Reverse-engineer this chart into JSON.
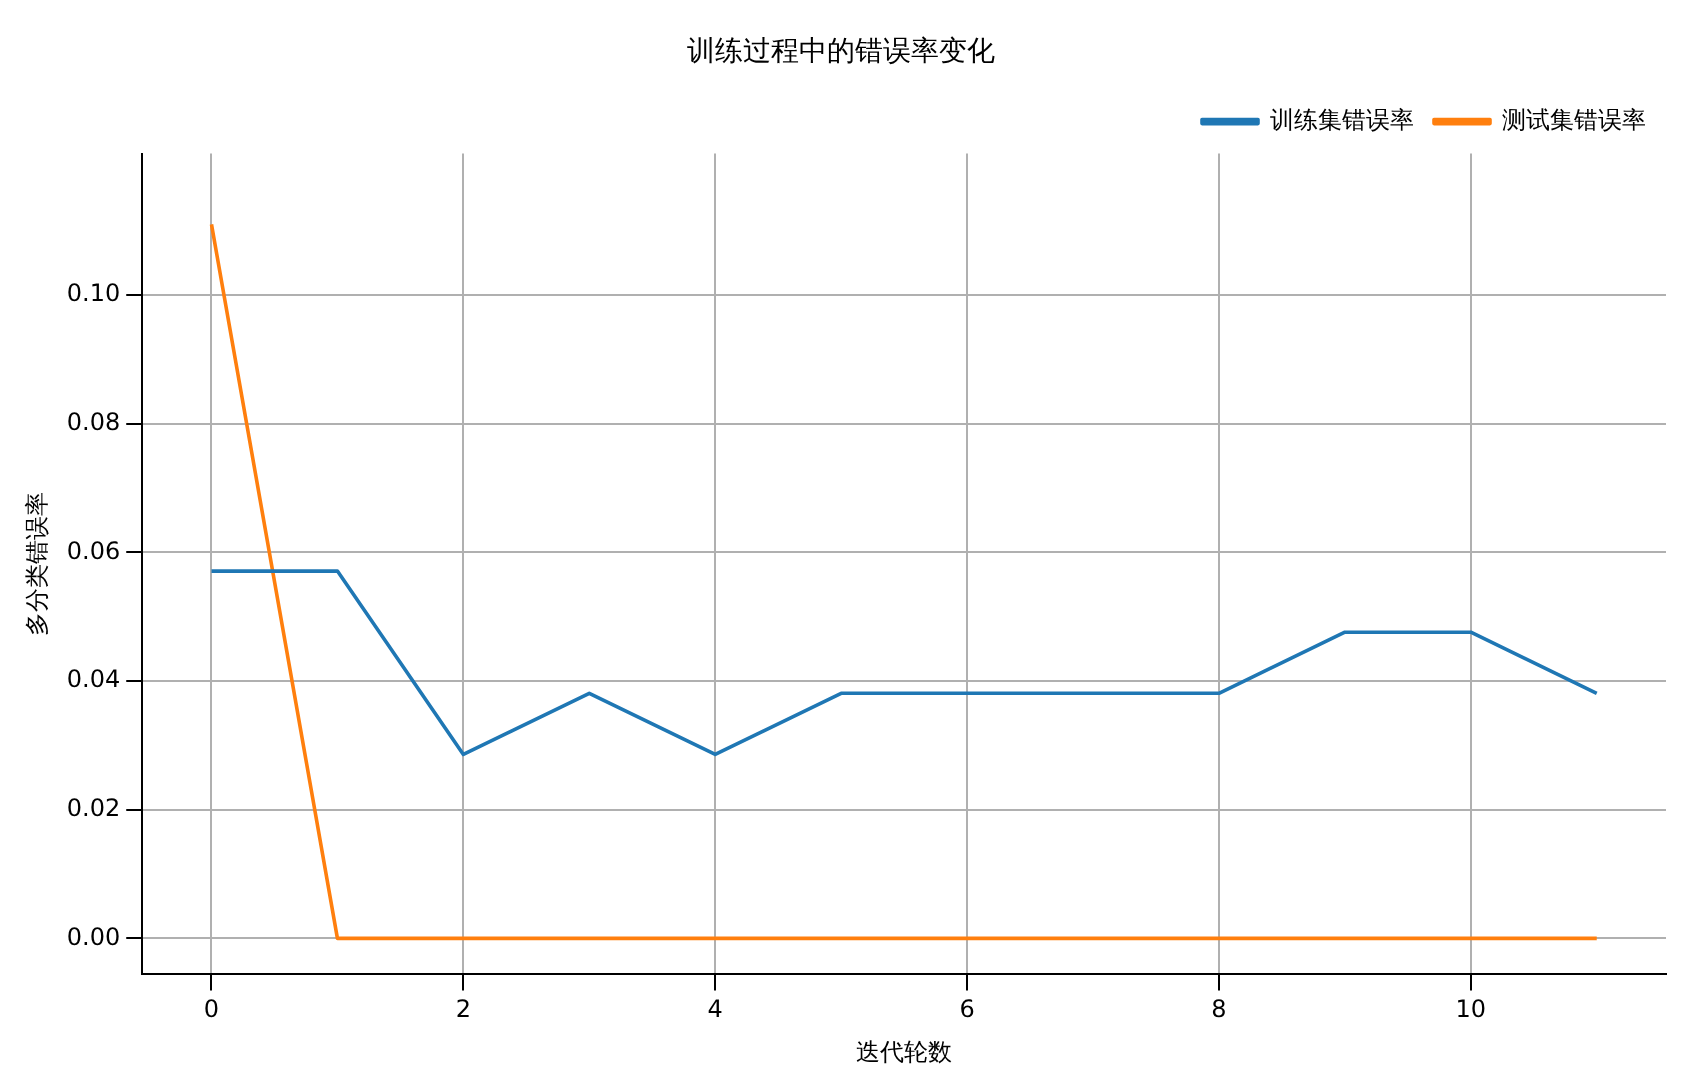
{
  "chart_data": {
    "type": "line",
    "title": "训练过程中的错误率变化",
    "xlabel": "迭代轮数",
    "ylabel": "多分类错误率",
    "x": [
      0,
      1,
      2,
      3,
      4,
      5,
      6,
      7,
      8,
      9,
      10,
      11
    ],
    "series": [
      {
        "name": "训练集错误率",
        "color": "#1f77b4",
        "values": [
          0.0571,
          0.0571,
          0.0286,
          0.0381,
          0.0286,
          0.0381,
          0.0381,
          0.0381,
          0.0381,
          0.0476,
          0.0476,
          0.0381
        ]
      },
      {
        "name": "测试集错误率",
        "color": "#ff7f0e",
        "values": [
          0.111,
          0,
          0,
          0,
          0,
          0,
          0,
          0,
          0,
          0,
          0,
          0
        ]
      }
    ],
    "xlim": [
      -0.55,
      11.55
    ],
    "xticks": [
      0,
      2,
      4,
      6,
      8,
      10
    ],
    "ylim": [
      -0.0056,
      0.122
    ],
    "yticks": [
      {
        "value": 0,
        "label": "0.00"
      },
      {
        "value": 0.02,
        "label": "0.02"
      },
      {
        "value": 0.04,
        "label": "0.04"
      },
      {
        "value": 0.06,
        "label": "0.06"
      },
      {
        "value": 0.08,
        "label": "0.08"
      },
      {
        "value": 0.1,
        "label": "0.10"
      }
    ],
    "grid": true,
    "legend": "top right",
    "marker": "none",
    "line_style": "solid"
  }
}
